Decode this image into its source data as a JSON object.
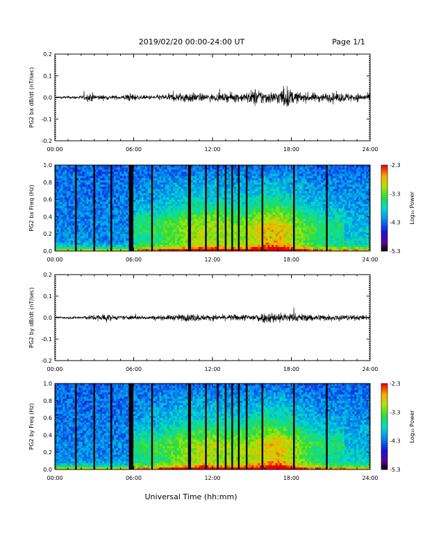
{
  "header": {
    "title": "2019/02/20  00:00-24:00 UT",
    "page": "Page 1/1"
  },
  "footer": {
    "xlabel": "Universal Time (hh:mm)"
  },
  "chart_data": [
    {
      "type": "line",
      "ylabel": "PG2 bx dB/dt (nT/sec)",
      "xlim": [
        0,
        24
      ],
      "ylim": [
        -0.2,
        0.2
      ],
      "yticks": [
        "0.2",
        "0.1",
        "0.0",
        "-0.1",
        "-0.2"
      ],
      "xticks": [
        "00:00",
        "06:00",
        "12:00",
        "18:00",
        "24:00"
      ],
      "series": [
        {
          "x": [
            0,
            1,
            2,
            2.8,
            3.2,
            4,
            5,
            5.8,
            6.5,
            7.5,
            8.5,
            9.5,
            10,
            10.8,
            11.5,
            12.5,
            13.5,
            14.5,
            15.3,
            15.8,
            16.5,
            17,
            17.6,
            18.2,
            19,
            20,
            21,
            22,
            23,
            24
          ],
          "amp": [
            0.005,
            0.006,
            0.008,
            0.02,
            0.012,
            0.01,
            0.008,
            0.02,
            0.008,
            0.01,
            0.015,
            0.02,
            0.025,
            0.018,
            0.015,
            0.015,
            0.02,
            0.02,
            0.04,
            0.03,
            0.025,
            0.03,
            0.05,
            0.025,
            0.02,
            0.02,
            0.02,
            0.02,
            0.018,
            0.015
          ]
        }
      ]
    },
    {
      "type": "heatmap",
      "ylabel": "PG2 bx Freq (Hz)",
      "xlim": [
        0,
        24
      ],
      "ylim": [
        0,
        1.0
      ],
      "yticks": [
        "1.0",
        "0.8",
        "0.6",
        "0.4",
        "0.2",
        "0.0"
      ],
      "xticks": [
        "00:00",
        "06:00",
        "12:00",
        "18:00",
        "24:00"
      ],
      "colorbar": {
        "label": "Log₁₀ Power",
        "ticks": [
          "-2.3",
          "-3.3",
          "-4.3",
          "-5.3"
        ],
        "range": [
          -5.3,
          -2.3
        ],
        "colormap": "rainbow"
      },
      "gaps_hours": [
        1.6,
        3.0,
        4.3,
        5.7,
        5.8,
        5.9,
        7.4,
        10.2,
        10.3,
        11.5,
        12.4,
        13.0,
        13.5,
        14.0,
        14.6,
        15.8,
        18.2,
        20.7
      ]
    },
    {
      "type": "line",
      "ylabel": "PG2 by dB/dt (nT/sec)",
      "xlim": [
        0,
        24
      ],
      "ylim": [
        -0.2,
        0.2
      ],
      "yticks": [
        "0.2",
        "0.1",
        "0.0",
        "-0.1",
        "-0.2"
      ],
      "xticks": [
        "00:00",
        "06:00",
        "12:00",
        "18:00",
        "24:00"
      ],
      "series": [
        {
          "x": [
            0,
            1,
            2,
            3,
            3.8,
            4.5,
            5,
            6,
            7,
            8,
            9,
            10.5,
            11.5,
            12.5,
            13.5,
            14.5,
            15.5,
            16.5,
            17.5,
            18.5,
            19.5,
            20.5,
            21.5,
            22.5,
            24
          ],
          "amp": [
            0.004,
            0.006,
            0.006,
            0.012,
            0.018,
            0.01,
            0.008,
            0.01,
            0.008,
            0.01,
            0.012,
            0.018,
            0.012,
            0.012,
            0.014,
            0.014,
            0.02,
            0.025,
            0.022,
            0.018,
            0.015,
            0.015,
            0.014,
            0.012,
            0.01
          ]
        }
      ]
    },
    {
      "type": "heatmap",
      "ylabel": "PG2 by Freq (Hz)",
      "xlim": [
        0,
        24
      ],
      "ylim": [
        0,
        1.0
      ],
      "yticks": [
        "1.0",
        "0.8",
        "0.6",
        "0.4",
        "0.2",
        "0.0"
      ],
      "xticks": [
        "00:00",
        "06:00",
        "12:00",
        "18:00",
        "24:00"
      ],
      "colorbar": {
        "label": "Log₁₀ Power",
        "ticks": [
          "-2.3",
          "-3.3",
          "-4.3",
          "-5.3"
        ],
        "range": [
          -5.3,
          -2.3
        ],
        "colormap": "rainbow"
      },
      "gaps_hours": [
        1.6,
        3.0,
        4.3,
        5.7,
        5.8,
        5.9,
        7.4,
        10.2,
        10.3,
        11.5,
        12.4,
        13.0,
        13.5,
        14.0,
        14.6,
        15.8,
        18.2,
        20.7
      ]
    }
  ]
}
